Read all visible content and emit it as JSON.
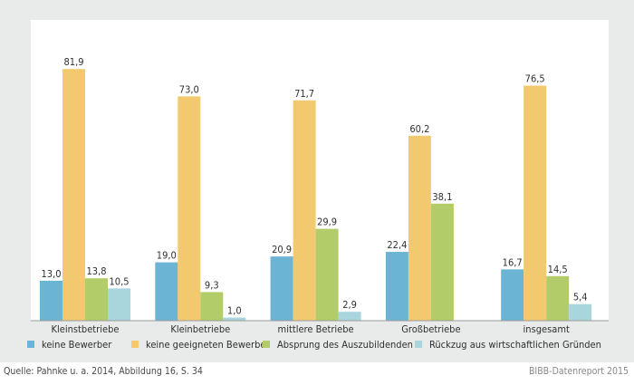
{
  "chart_data": {
    "type": "bar",
    "categories": [
      "Kleinstbetriebe",
      "Kleinbetriebe",
      "mittlere Betriebe",
      "Großbetriebe",
      "insgesamt"
    ],
    "series": [
      {
        "name": "keine Bewerber",
        "color": "#6cb4d4",
        "values": [
          13.0,
          19.0,
          20.9,
          22.4,
          16.7
        ],
        "labels": [
          "13,0",
          "19,0",
          "20,9",
          "22,4",
          "16,7"
        ]
      },
      {
        "name": "keine geeigneten Bewerber",
        "color": "#f2c96e",
        "values": [
          81.9,
          73.0,
          71.7,
          60.2,
          76.5
        ],
        "labels": [
          "81,9",
          "73,0",
          "71,7",
          "60,2",
          "76,5"
        ]
      },
      {
        "name": "Absprung des Auszubildenden",
        "color": "#b2cc6a",
        "values": [
          13.8,
          9.3,
          29.9,
          38.1,
          14.5
        ],
        "labels": [
          "13,8",
          "9,3",
          "29,9",
          "38,1",
          "14,5"
        ]
      },
      {
        "name": "Rückzug aus wirtschaftlichen Gründen",
        "color": "#a9d5dc",
        "values": [
          10.5,
          1.0,
          2.9,
          null,
          5.4
        ],
        "labels": [
          "10,5",
          "1,0",
          "2,9",
          "",
          "5,4"
        ]
      }
    ],
    "ylim": [
      0,
      90
    ],
    "grid": false,
    "legend": "bottom"
  },
  "footer": {
    "source": "Quelle: Pahnke u. a. 2014, Abbildung 16, S. 34",
    "publisher": "BIBB-Datenreport 2015"
  }
}
